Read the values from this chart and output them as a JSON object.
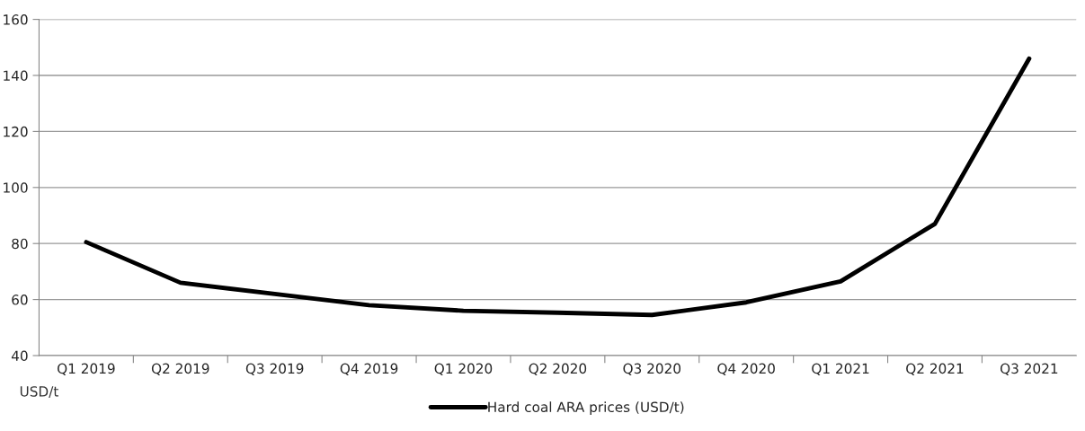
{
  "chart_data": {
    "type": "line",
    "ylabel": "USD/t",
    "categories": [
      "Q1 2019",
      "Q2 2019",
      "Q3 2019",
      "Q4 2019",
      "Q1 2020",
      "Q2 2020",
      "Q3 2020",
      "Q4 2020",
      "Q1 2021",
      "Q2 2021",
      "Q3 2021"
    ],
    "series": [
      {
        "name": "Hard coal ARA prices (USD/t)",
        "color": "#000000",
        "values": [
          80.5,
          66,
          62,
          58,
          56,
          55.3,
          54.5,
          59,
          66.5,
          87,
          146
        ]
      }
    ],
    "ylim": [
      40,
      160
    ],
    "yticks": [
      40,
      60,
      80,
      100,
      120,
      140,
      160
    ],
    "grid": "y",
    "legend": "bottom",
    "marker": "none",
    "line_style": "solid"
  }
}
